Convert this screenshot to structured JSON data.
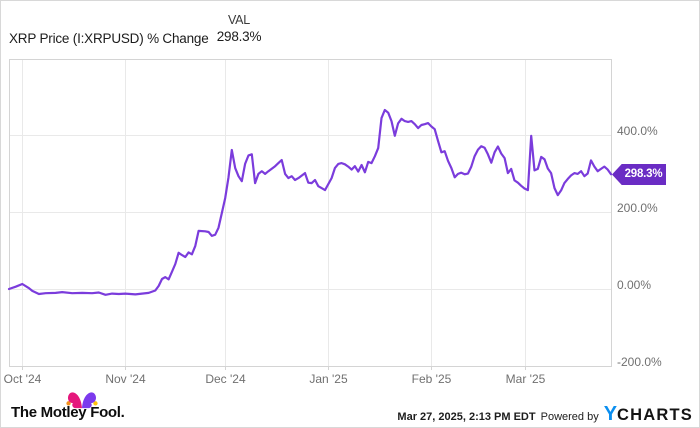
{
  "legend": {
    "series_label": "XRP Price (I:XRPUSD) % Change",
    "value_header": "VAL",
    "value_current": "298.3%"
  },
  "chart_data": {
    "type": "line",
    "title": "XRP Price (I:XRPUSD) % Change",
    "legend_position": "top-left",
    "grid": true,
    "x_axis": {
      "type": "time",
      "start": "2024-09-27",
      "end": "2025-03-27",
      "ticks": [
        {
          "label": "Oct '24",
          "date": "2024-10-01"
        },
        {
          "label": "Nov '24",
          "date": "2024-11-01"
        },
        {
          "label": "Dec '24",
          "date": "2024-12-01"
        },
        {
          "label": "Jan '25",
          "date": "2025-01-01"
        },
        {
          "label": "Feb '25",
          "date": "2025-02-01"
        },
        {
          "label": "Mar '25",
          "date": "2025-03-01"
        }
      ]
    },
    "y_axis": {
      "unit": "percent",
      "side": "right",
      "ticks": [
        {
          "label": "400.0%",
          "value": 400
        },
        {
          "label": "200.0%",
          "value": 200
        },
        {
          "label": "0.00%",
          "value": 0
        },
        {
          "label": "-200.0%",
          "value": -200
        }
      ]
    },
    "last_value": 298.3,
    "badge_label": "298.3%",
    "series": [
      {
        "name": "XRP Price (I:XRPUSD) % Change",
        "color": "#7B3CDC",
        "points": [
          [
            "2024-09-27",
            0
          ],
          [
            "2024-09-29",
            6
          ],
          [
            "2024-10-01",
            13
          ],
          [
            "2024-10-03",
            2
          ],
          [
            "2024-10-04",
            -5
          ],
          [
            "2024-10-06",
            -13
          ],
          [
            "2024-10-08",
            -11
          ],
          [
            "2024-10-11",
            -10
          ],
          [
            "2024-10-13",
            -8
          ],
          [
            "2024-10-16",
            -11
          ],
          [
            "2024-10-19",
            -10
          ],
          [
            "2024-10-22",
            -11
          ],
          [
            "2024-10-24",
            -9
          ],
          [
            "2024-10-26",
            -15
          ],
          [
            "2024-10-28",
            -12
          ],
          [
            "2024-10-30",
            -13
          ],
          [
            "2024-11-01",
            -12
          ],
          [
            "2024-11-04",
            -14
          ],
          [
            "2024-11-06",
            -12
          ],
          [
            "2024-11-08",
            -10
          ],
          [
            "2024-11-10",
            -4
          ],
          [
            "2024-11-11",
            8
          ],
          [
            "2024-11-12",
            26
          ],
          [
            "2024-11-13",
            31
          ],
          [
            "2024-11-14",
            25
          ],
          [
            "2024-11-15",
            45
          ],
          [
            "2024-11-16",
            65
          ],
          [
            "2024-11-17",
            94
          ],
          [
            "2024-11-18",
            88
          ],
          [
            "2024-11-19",
            83
          ],
          [
            "2024-11-20",
            95
          ],
          [
            "2024-11-21",
            90
          ],
          [
            "2024-11-22",
            112
          ],
          [
            "2024-11-23",
            151
          ],
          [
            "2024-11-25",
            150
          ],
          [
            "2024-11-26",
            148
          ],
          [
            "2024-11-27",
            138
          ],
          [
            "2024-11-28",
            141
          ],
          [
            "2024-11-29",
            159
          ],
          [
            "2024-11-30",
            198
          ],
          [
            "2024-12-01",
            236
          ],
          [
            "2024-12-02",
            290
          ],
          [
            "2024-12-03",
            361
          ],
          [
            "2024-12-04",
            314
          ],
          [
            "2024-12-05",
            293
          ],
          [
            "2024-12-06",
            280
          ],
          [
            "2024-12-07",
            325
          ],
          [
            "2024-12-08",
            347
          ],
          [
            "2024-12-09",
            350
          ],
          [
            "2024-12-10",
            275
          ],
          [
            "2024-12-11",
            299
          ],
          [
            "2024-12-12",
            306
          ],
          [
            "2024-12-13",
            299
          ],
          [
            "2024-12-14",
            306
          ],
          [
            "2024-12-16",
            319
          ],
          [
            "2024-12-17",
            327
          ],
          [
            "2024-12-18",
            335
          ],
          [
            "2024-12-19",
            299
          ],
          [
            "2024-12-20",
            288
          ],
          [
            "2024-12-21",
            293
          ],
          [
            "2024-12-22",
            283
          ],
          [
            "2024-12-23",
            288
          ],
          [
            "2024-12-25",
            301
          ],
          [
            "2024-12-26",
            276
          ],
          [
            "2024-12-27",
            275
          ],
          [
            "2024-12-28",
            283
          ],
          [
            "2024-12-29",
            267
          ],
          [
            "2024-12-30",
            262
          ],
          [
            "2024-12-31",
            257
          ],
          [
            "2025-01-02",
            288
          ],
          [
            "2025-01-03",
            314
          ],
          [
            "2025-01-04",
            325
          ],
          [
            "2025-01-05",
            327
          ],
          [
            "2025-01-06",
            324
          ],
          [
            "2025-01-07",
            318
          ],
          [
            "2025-01-08",
            310
          ],
          [
            "2025-01-09",
            319
          ],
          [
            "2025-01-10",
            305
          ],
          [
            "2025-01-11",
            322
          ],
          [
            "2025-01-12",
            303
          ],
          [
            "2025-01-13",
            330
          ],
          [
            "2025-01-14",
            327
          ],
          [
            "2025-01-15",
            345
          ],
          [
            "2025-01-16",
            366
          ],
          [
            "2025-01-17",
            444
          ],
          [
            "2025-01-18",
            465
          ],
          [
            "2025-01-19",
            458
          ],
          [
            "2025-01-20",
            436
          ],
          [
            "2025-01-21",
            398
          ],
          [
            "2025-01-22",
            430
          ],
          [
            "2025-01-23",
            442
          ],
          [
            "2025-01-24",
            436
          ],
          [
            "2025-01-25",
            434
          ],
          [
            "2025-01-26",
            436
          ],
          [
            "2025-01-27",
            428
          ],
          [
            "2025-01-28",
            418
          ],
          [
            "2025-01-29",
            426
          ],
          [
            "2025-01-30",
            428
          ],
          [
            "2025-01-31",
            431
          ],
          [
            "2025-02-01",
            422
          ],
          [
            "2025-02-02",
            415
          ],
          [
            "2025-02-03",
            385
          ],
          [
            "2025-02-04",
            355
          ],
          [
            "2025-02-05",
            358
          ],
          [
            "2025-02-06",
            333
          ],
          [
            "2025-02-07",
            314
          ],
          [
            "2025-02-08",
            290
          ],
          [
            "2025-02-09",
            299
          ],
          [
            "2025-02-10",
            302
          ],
          [
            "2025-02-11",
            298
          ],
          [
            "2025-02-12",
            300
          ],
          [
            "2025-02-13",
            318
          ],
          [
            "2025-02-14",
            345
          ],
          [
            "2025-02-15",
            362
          ],
          [
            "2025-02-16",
            371
          ],
          [
            "2025-02-17",
            367
          ],
          [
            "2025-02-18",
            350
          ],
          [
            "2025-02-19",
            328
          ],
          [
            "2025-02-20",
            355
          ],
          [
            "2025-02-21",
            370
          ],
          [
            "2025-02-22",
            352
          ],
          [
            "2025-02-23",
            340
          ],
          [
            "2025-02-24",
            301
          ],
          [
            "2025-02-25",
            312
          ],
          [
            "2025-02-26",
            282
          ],
          [
            "2025-02-27",
            276
          ],
          [
            "2025-02-28",
            268
          ],
          [
            "2025-03-01",
            261
          ],
          [
            "2025-03-02",
            257
          ],
          [
            "2025-03-03",
            398
          ],
          [
            "2025-03-04",
            308
          ],
          [
            "2025-03-05",
            312
          ],
          [
            "2025-03-06",
            343
          ],
          [
            "2025-03-07",
            337
          ],
          [
            "2025-03-08",
            313
          ],
          [
            "2025-03-09",
            301
          ],
          [
            "2025-03-10",
            262
          ],
          [
            "2025-03-11",
            244
          ],
          [
            "2025-03-12",
            256
          ],
          [
            "2025-03-13",
            275
          ],
          [
            "2025-03-14",
            286
          ],
          [
            "2025-03-15",
            295
          ],
          [
            "2025-03-16",
            301
          ],
          [
            "2025-03-17",
            299
          ],
          [
            "2025-03-18",
            306
          ],
          [
            "2025-03-19",
            293
          ],
          [
            "2025-03-20",
            300
          ],
          [
            "2025-03-21",
            334
          ],
          [
            "2025-03-22",
            318
          ],
          [
            "2025-03-23",
            306
          ],
          [
            "2025-03-24",
            312
          ],
          [
            "2025-03-25",
            318
          ],
          [
            "2025-03-26",
            310
          ],
          [
            "2025-03-27",
            298.3
          ]
        ]
      }
    ]
  },
  "footer": {
    "brand_text": "The Motley Fool.",
    "timestamp": "Mar 27, 2025, 2:13 PM EDT",
    "powered_by_label": "Powered by",
    "ycharts_logo_y": "Y",
    "ycharts_logo_rest": "CHARTS"
  },
  "colors": {
    "line": "#7B3CDC",
    "badge_bg": "#6A2CC4",
    "badge_text": "#FFFFFF",
    "grid": "#E9E9E9",
    "plot_border": "#D4D4D4",
    "axis_label": "#707070",
    "ycharts_blue": "#0B8FF0",
    "fool_pink": "#E5177C",
    "fool_purple": "#7C3AED",
    "fool_ball_left": "#F4911E",
    "fool_ball_right": "#FFC20E"
  }
}
